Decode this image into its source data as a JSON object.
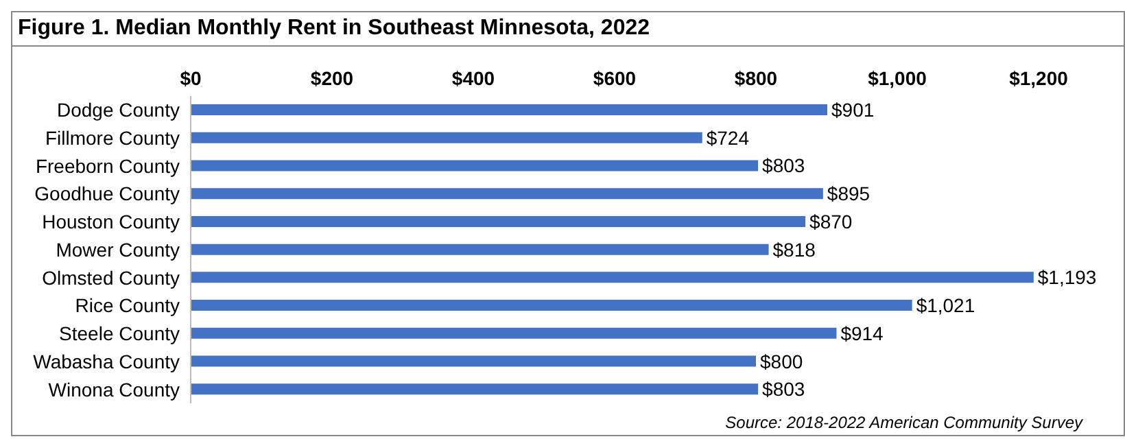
{
  "chart_data": {
    "type": "bar",
    "orientation": "horizontal",
    "title": "Figure 1. Median Monthly Rent in Southeast Minnesota, 2022",
    "categories": [
      "Dodge County",
      "Fillmore County",
      "Freeborn County",
      "Goodhue County",
      "Houston County",
      "Mower County",
      "Olmsted County",
      "Rice County",
      "Steele County",
      "Wabasha County",
      "Winona County"
    ],
    "values": [
      901,
      724,
      803,
      895,
      870,
      818,
      1193,
      1021,
      914,
      800,
      803
    ],
    "value_labels": [
      "$901",
      "$724",
      "$803",
      "$895",
      "$870",
      "$818",
      "$1,193",
      "$1,021",
      "$914",
      "$800",
      "$803"
    ],
    "color": "#4472c4",
    "xlim": [
      0,
      1200
    ],
    "xticks": [
      {
        "value": 0,
        "label": "$0"
      },
      {
        "value": 200,
        "label": "$200"
      },
      {
        "value": 400,
        "label": "$400"
      },
      {
        "value": 600,
        "label": "$600"
      },
      {
        "value": 800,
        "label": "$800"
      },
      {
        "value": 1000,
        "label": "$1,000"
      },
      {
        "value": 1200,
        "label": "$1,200"
      }
    ],
    "grid": false,
    "legend": false,
    "annotations": [
      "Source: 2018-2022 American Community Survey"
    ]
  }
}
